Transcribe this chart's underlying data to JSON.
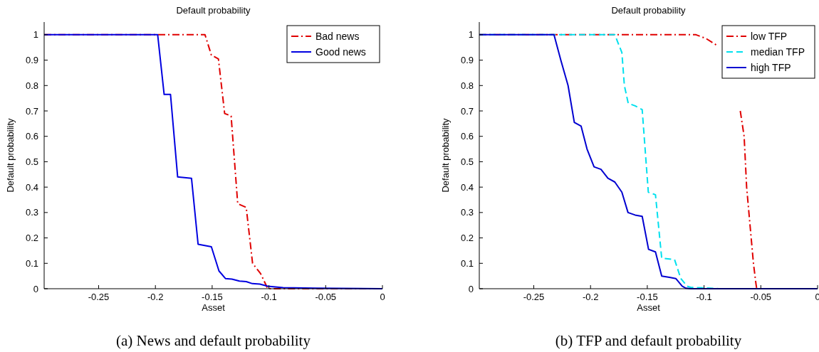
{
  "chart_data": [
    {
      "type": "line",
      "title": "Default probability",
      "xlabel": "Asset",
      "ylabel": "Default probability",
      "annotations": [
        "(a) News and default probability"
      ],
      "xlim": [
        -0.298,
        0
      ],
      "ylim": [
        0,
        1.05
      ],
      "xticks": [
        -0.25,
        -0.2,
        -0.15,
        -0.1,
        -0.05,
        0
      ],
      "yticks": [
        0,
        0.1,
        0.2,
        0.3,
        0.4,
        0.5,
        0.6,
        0.7,
        0.8,
        0.9,
        1
      ],
      "legend": "top right",
      "grid": false,
      "series": [
        {
          "name": "Bad news",
          "color": "#e00000",
          "line_style": "dashdot",
          "x": [
            -0.298,
            -0.1563,
            -0.1507,
            -0.1445,
            -0.139,
            -0.1333,
            -0.1275,
            -0.12,
            -0.1144,
            -0.1074,
            -0.101,
            0
          ],
          "values": [
            1,
            1,
            0.92,
            0.905,
            0.69,
            0.68,
            0.335,
            0.32,
            0.1,
            0.06,
            0,
            0
          ]
        },
        {
          "name": "Good news",
          "color": "#0000e0",
          "line_style": "solid",
          "x": [
            -0.298,
            -0.198,
            -0.1923,
            -0.1867,
            -0.1804,
            -0.1682,
            -0.1624,
            -0.1507,
            -0.144,
            -0.1383,
            -0.1326,
            -0.126,
            -0.12,
            -0.1146,
            -0.108,
            -0.101,
            -0.0876,
            -0.0588,
            0
          ],
          "values": [
            1,
            1,
            0.765,
            0.765,
            0.44,
            0.435,
            0.175,
            0.165,
            0.07,
            0.04,
            0.038,
            0.03,
            0.028,
            0.02,
            0.018,
            0.01,
            0.004,
            0.002,
            0
          ]
        }
      ]
    },
    {
      "type": "line",
      "title": "Default probability",
      "xlabel": "Asset",
      "ylabel": "Default probability",
      "annotations": [
        "(b) TFP and default probability"
      ],
      "xlim": [
        -0.298,
        0
      ],
      "ylim": [
        0,
        1.05
      ],
      "xticks": [
        -0.25,
        -0.2,
        -0.15,
        -0.1,
        -0.05,
        0
      ],
      "yticks": [
        0,
        0.1,
        0.2,
        0.3,
        0.4,
        0.5,
        0.6,
        0.7,
        0.8,
        0.9,
        1
      ],
      "legend": "top right",
      "grid": false,
      "series": [
        {
          "name": "low TFP",
          "color": "#e00000",
          "line_style": "dashdot",
          "x": [
            -0.298,
            -0.1071,
            -0.0982,
            -0.0893,
            -0.08,
            -0.0726,
            -0.0681,
            -0.0647,
            -0.0625,
            -0.0585,
            -0.0565,
            -0.0543,
            -0.0536,
            0
          ],
          "values": [
            1,
            1,
            0.985,
            0.96,
            null,
            null,
            0.7,
            0.6,
            0.4,
            0.2,
            0.1,
            0.02,
            0,
            0
          ]
        },
        {
          "name": "median TFP",
          "color": "#00e0ee",
          "line_style": "dashed",
          "x": [
            -0.298,
            -0.1786,
            -0.1724,
            -0.1702,
            -0.1668,
            -0.1607,
            -0.1545,
            -0.1491,
            -0.1428,
            -0.1373,
            -0.126,
            -0.1205,
            -0.1149,
            -0.1115,
            -0.098,
            -0.087,
            0
          ],
          "values": [
            1,
            1,
            0.93,
            0.8,
            0.73,
            0.72,
            0.705,
            0.38,
            0.37,
            0.12,
            0.115,
            0.04,
            0.01,
            0.005,
            0.003,
            0,
            0
          ]
        },
        {
          "name": "high TFP",
          "color": "#0000d0",
          "line_style": "solid",
          "x": [
            -0.298,
            -0.2322,
            -0.2262,
            -0.2198,
            -0.2143,
            -0.2083,
            -0.2031,
            -0.1969,
            -0.1908,
            -0.1847,
            -0.1786,
            -0.1724,
            -0.167,
            -0.1607,
            -0.1545,
            -0.1489,
            -0.1428,
            -0.1373,
            -0.1305,
            -0.1249,
            -0.1193,
            -0.116,
            -0.1115,
            0
          ],
          "values": [
            1,
            1,
            0.9,
            0.8,
            0.655,
            0.64,
            0.55,
            0.48,
            0.47,
            0.435,
            0.42,
            0.38,
            0.3,
            0.29,
            0.285,
            0.155,
            0.145,
            0.05,
            0.045,
            0.04,
            0.01,
            0.002,
            0,
            0
          ]
        }
      ]
    }
  ]
}
